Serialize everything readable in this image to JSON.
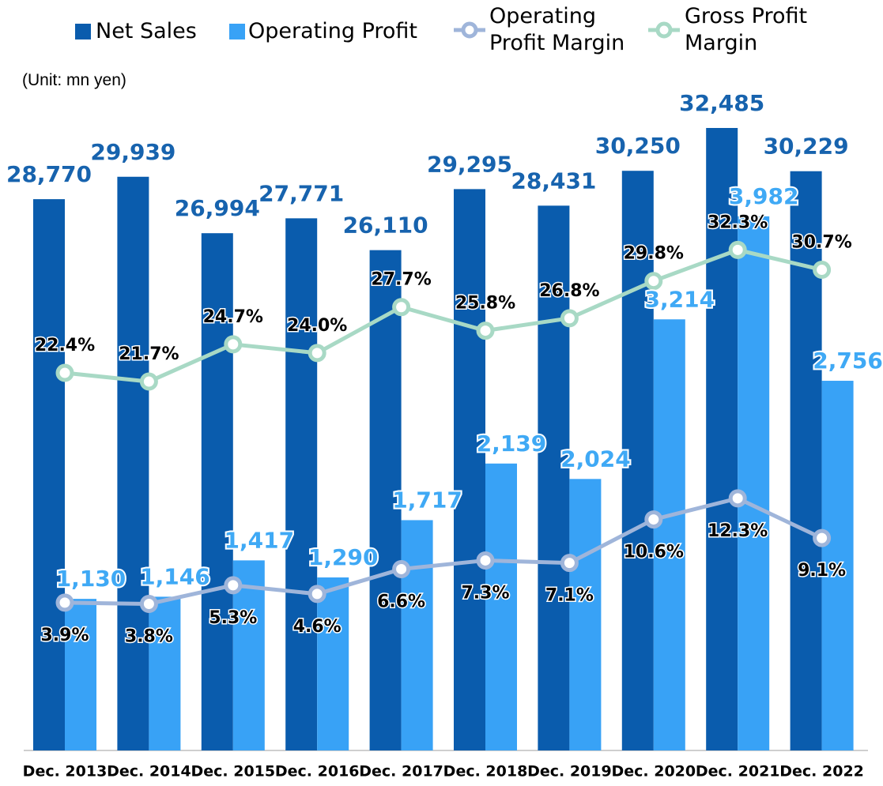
{
  "chart_data": {
    "type": "bar-line",
    "subtitle": "(Unit: mn yen)",
    "categories": [
      "Dec. 2013",
      "Dec. 2014",
      "Dec. 2015",
      "Dec. 2016",
      "Dec. 2017",
      "Dec. 2018",
      "Dec. 2019",
      "Dec. 2020",
      "Dec. 2021",
      "Dec. 2022"
    ],
    "ylim": [
      0,
      35000
    ],
    "y2lim": [
      0,
      5000
    ],
    "y3lim": [
      -8,
      46
    ],
    "series": [
      {
        "name": "Net Sales",
        "type": "bar",
        "axis": "y",
        "color": "#0a5cad",
        "values": [
          28770,
          29939,
          26994,
          27771,
          26110,
          29295,
          28431,
          30250,
          32485,
          30229
        ],
        "value_labels": [
          "28,770",
          "29,939",
          "26,994",
          "27,771",
          "26,110",
          "29,295",
          "28,431",
          "30,250",
          "32,485",
          "30,229"
        ]
      },
      {
        "name": "Operating Profit",
        "type": "bar",
        "axis": "y2",
        "color": "#38a2f6",
        "values": [
          1130,
          1146,
          1417,
          1290,
          1717,
          2139,
          2024,
          3214,
          3982,
          2756
        ],
        "value_labels": [
          "1,130",
          "1,146",
          "1,417",
          "1,290",
          "1,717",
          "2,139",
          "2,024",
          "3,214",
          "3,982",
          "2,756"
        ]
      },
      {
        "name": "Operating Profit Margin",
        "type": "line",
        "axis": "y3",
        "color": "#9fb5da",
        "values": [
          3.9,
          3.8,
          5.3,
          4.6,
          6.6,
          7.3,
          7.1,
          10.6,
          12.3,
          9.1
        ],
        "value_labels": [
          "3.9%",
          "3.8%",
          "5.3%",
          "4.6%",
          "6.6%",
          "7.3%",
          "7.1%",
          "10.6%",
          "12.3%",
          "9.1%"
        ]
      },
      {
        "name": "Gross Profit Margin",
        "type": "line",
        "axis": "y3",
        "color": "#a8d9c5",
        "values": [
          22.4,
          21.7,
          24.7,
          24.0,
          27.7,
          25.8,
          26.8,
          29.8,
          32.3,
          30.7
        ],
        "value_labels": [
          "22.4%",
          "21.7%",
          "24.7%",
          "24.0%",
          "27.7%",
          "25.8%",
          "26.8%",
          "29.8%",
          "32.3%",
          "30.7%"
        ]
      }
    ]
  }
}
